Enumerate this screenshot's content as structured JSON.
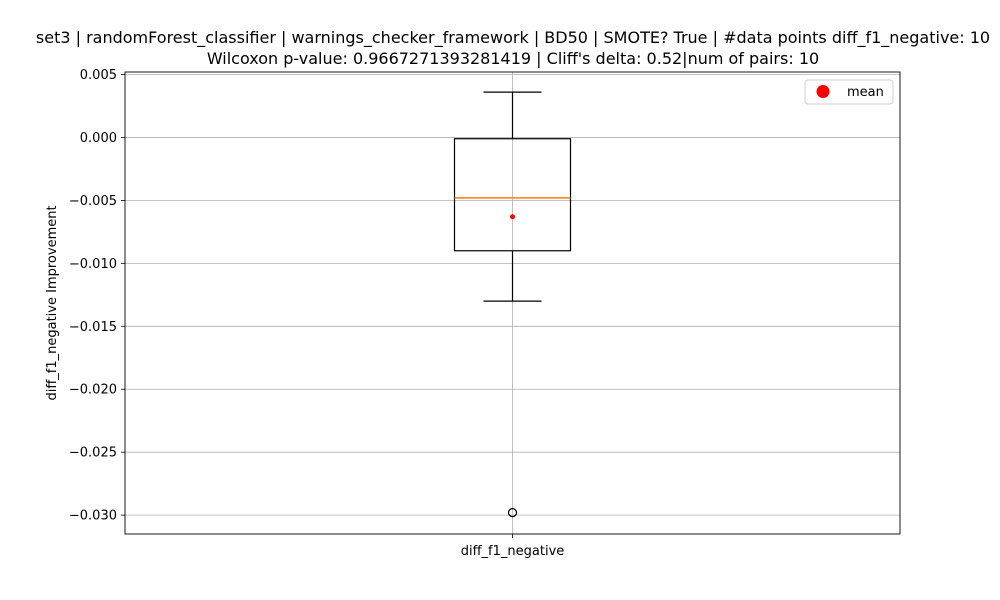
{
  "chart_data": {
    "type": "box",
    "title_line1": "set3 | randomForest_classifier | warnings_checker_framework | BD50 | SMOTE? True | #data points diff_f1_negative: 10",
    "title_line2": "Wilcoxon p-value: 0.9667271393281419 | Cliff's delta: 0.52|num of pairs: 10",
    "xlabel": "",
    "ylabel": "diff_f1_negative Improvement",
    "categories": [
      "diff_f1_negative"
    ],
    "ylim": [
      -0.0315,
      0.0052
    ],
    "yticks": [
      0.005,
      0.0,
      -0.005,
      -0.01,
      -0.015,
      -0.02,
      -0.025,
      -0.03
    ],
    "ytick_labels": [
      "0.005",
      "0.000",
      "−0.005",
      "−0.010",
      "−0.015",
      "−0.020",
      "−0.025",
      "−0.030"
    ],
    "boxes": [
      {
        "category": "diff_f1_negative",
        "whisker_low": -0.013,
        "q1": -0.009,
        "median": -0.0048,
        "q3": -0.0001,
        "whisker_high": 0.0036,
        "mean": -0.0063,
        "outliers": [
          -0.0298
        ]
      }
    ],
    "legend": {
      "position": "top-right",
      "entries": [
        "mean"
      ]
    },
    "grid": true,
    "colors": {
      "box": "#000000",
      "median": "#ff7f0e",
      "mean": "#ff0000",
      "grid": "#b0b0b0"
    }
  }
}
